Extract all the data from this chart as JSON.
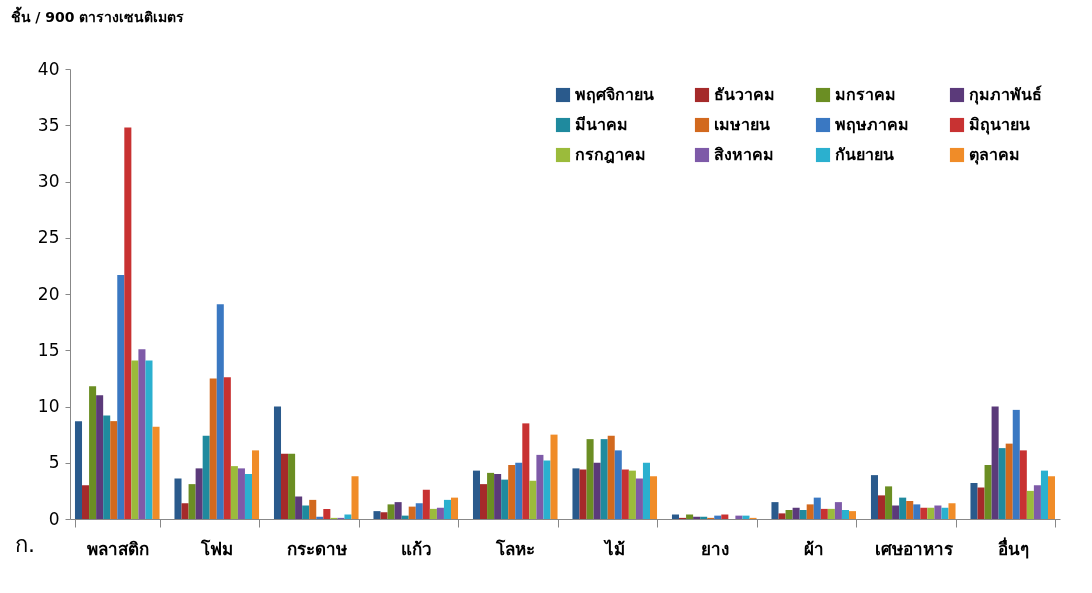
{
  "chart_data": {
    "type": "bar",
    "ylabel": "ชิ้น / 900 ตารางเซนติเมตร",
    "annotations": [
      "ก."
    ],
    "categories": [
      "พลาสติก",
      "โฟม",
      "กระดาษ",
      "แก้ว",
      "โลหะ",
      "ไม้",
      "ยาง",
      "ผ้า",
      "เศษอาหาร",
      "อื่นๆ"
    ],
    "series": [
      {
        "name": "พฤศจิกายน",
        "color": "#2a5a8c",
        "values": [
          8.7,
          3.6,
          10.0,
          0.7,
          4.3,
          4.5,
          0.4,
          1.5,
          3.9,
          3.2
        ]
      },
      {
        "name": "ธันวาคม",
        "color": "#a52a2a",
        "values": [
          3.0,
          1.4,
          5.8,
          0.6,
          3.1,
          4.4,
          0.1,
          0.5,
          2.1,
          2.8
        ]
      },
      {
        "name": "มกราคม",
        "color": "#6b8e23",
        "values": [
          11.8,
          3.1,
          5.8,
          1.3,
          4.1,
          7.1,
          0.4,
          0.8,
          2.9,
          4.8
        ]
      },
      {
        "name": "กุมภาพันธ์",
        "color": "#5b3a7a",
        "values": [
          11.0,
          4.5,
          2.0,
          1.5,
          4.0,
          5.0,
          0.2,
          1.0,
          1.2,
          10.0
        ]
      },
      {
        "name": "มีนาคม",
        "color": "#1f8a9e",
        "values": [
          9.2,
          7.4,
          1.2,
          0.3,
          3.5,
          7.1,
          0.2,
          0.8,
          1.9,
          6.3
        ]
      },
      {
        "name": "เมษายน",
        "color": "#d2691e",
        "values": [
          8.7,
          12.5,
          1.7,
          1.1,
          4.8,
          7.4,
          0.1,
          1.3,
          1.6,
          6.7
        ]
      },
      {
        "name": "พฤษภาคม",
        "color": "#3a78c2",
        "values": [
          21.7,
          19.1,
          0.2,
          1.4,
          5.0,
          6.1,
          0.3,
          1.9,
          1.3,
          9.7
        ]
      },
      {
        "name": "มิถุนายน",
        "color": "#c83232",
        "values": [
          34.8,
          12.6,
          0.9,
          2.6,
          8.5,
          4.4,
          0.4,
          0.9,
          1.0,
          6.1
        ]
      },
      {
        "name": "กรกฎาคม",
        "color": "#9bbb3b",
        "values": [
          14.1,
          4.7,
          0.1,
          0.9,
          3.4,
          4.3,
          0,
          0.9,
          1.0,
          2.5
        ]
      },
      {
        "name": "สิงหาคม",
        "color": "#7e5aa8",
        "values": [
          15.1,
          4.5,
          0.1,
          1.0,
          5.7,
          3.6,
          0.3,
          1.5,
          1.2,
          3.0
        ]
      },
      {
        "name": "กันยายน",
        "color": "#2bb0cf",
        "values": [
          14.1,
          4.0,
          0.4,
          1.7,
          5.2,
          5.0,
          0.3,
          0.8,
          1.0,
          4.3
        ]
      },
      {
        "name": "ตุลาคม",
        "color": "#f08c28",
        "values": [
          8.2,
          6.1,
          3.8,
          1.9,
          7.5,
          3.8,
          0.1,
          0.7,
          1.4,
          3.8
        ]
      }
    ],
    "ylim": [
      0,
      40
    ],
    "yticks": [
      0,
      5,
      10,
      15,
      20,
      25,
      30,
      35,
      40
    ],
    "grid": false,
    "legend": "top right"
  }
}
